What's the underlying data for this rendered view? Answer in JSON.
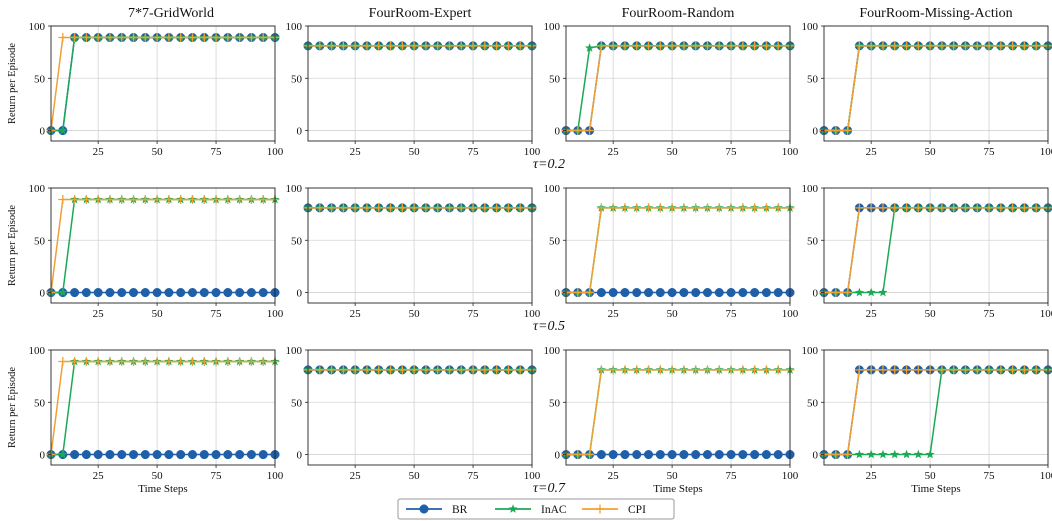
{
  "figure": {
    "column_titles": [
      "7*7-GridWorld",
      "FourRoom-Expert",
      "FourRoom-Random",
      "FourRoom-Missing-Action"
    ],
    "row_labels": [
      "τ=0.2",
      "τ=0.5",
      "τ=0.7"
    ],
    "ylabel": "Return per Episode",
    "xlabel": "Time Steps",
    "legend": [
      "BR",
      "InAC",
      "CPI"
    ]
  },
  "colors": {
    "BR": "#1f5fa8",
    "InAC": "#1aaa55",
    "CPI": "#f0a030",
    "grid": "#d3d3d3"
  },
  "chart_data": {
    "type": "line",
    "layout": "grid 3 rows x 4 columns",
    "xlim": [
      5,
      100
    ],
    "ylim": [
      -10,
      100
    ],
    "xticks": [
      25,
      50,
      75,
      100
    ],
    "yticks": [
      0,
      50,
      100
    ],
    "grid": true,
    "x": [
      5,
      10,
      15,
      20,
      25,
      30,
      35,
      40,
      45,
      50,
      55,
      60,
      65,
      70,
      75,
      80,
      85,
      90,
      95,
      100
    ],
    "legend_position": "bottom-center",
    "panels": [
      {
        "row": 0,
        "col": 0,
        "series": [
          {
            "name": "BR",
            "values": [
              0,
              0,
              89,
              89,
              89,
              89,
              89,
              89,
              89,
              89,
              89,
              89,
              89,
              89,
              89,
              89,
              89,
              89,
              89,
              89
            ]
          },
          {
            "name": "InAC",
            "values": [
              0,
              0,
              89,
              89,
              89,
              89,
              89,
              89,
              89,
              89,
              89,
              89,
              89,
              89,
              89,
              89,
              89,
              89,
              89,
              89
            ]
          },
          {
            "name": "CPI",
            "values": [
              0,
              89,
              89,
              89,
              89,
              89,
              89,
              89,
              89,
              89,
              89,
              89,
              89,
              89,
              89,
              89,
              89,
              89,
              89,
              89
            ]
          }
        ]
      },
      {
        "row": 0,
        "col": 1,
        "series": [
          {
            "name": "BR",
            "values": [
              81,
              81,
              81,
              81,
              81,
              81,
              81,
              81,
              81,
              81,
              81,
              81,
              81,
              81,
              81,
              81,
              81,
              81,
              81,
              81
            ]
          },
          {
            "name": "InAC",
            "values": [
              81,
              81,
              81,
              81,
              81,
              81,
              81,
              81,
              81,
              81,
              81,
              81,
              81,
              81,
              81,
              81,
              81,
              81,
              81,
              81
            ]
          },
          {
            "name": "CPI",
            "values": [
              81,
              81,
              81,
              81,
              81,
              81,
              81,
              81,
              81,
              81,
              81,
              81,
              81,
              81,
              81,
              81,
              81,
              81,
              81,
              81
            ]
          }
        ]
      },
      {
        "row": 0,
        "col": 2,
        "series": [
          {
            "name": "BR",
            "values": [
              0,
              0,
              0,
              81,
              81,
              81,
              81,
              81,
              81,
              81,
              81,
              81,
              81,
              81,
              81,
              81,
              81,
              81,
              81,
              81
            ]
          },
          {
            "name": "InAC",
            "values": [
              0,
              0,
              79,
              81,
              81,
              81,
              81,
              81,
              81,
              81,
              81,
              81,
              81,
              81,
              81,
              81,
              81,
              81,
              81,
              81
            ]
          },
          {
            "name": "CPI",
            "values": [
              0,
              0,
              0,
              81,
              81,
              81,
              81,
              81,
              81,
              81,
              81,
              81,
              81,
              81,
              81,
              81,
              81,
              81,
              81,
              81
            ]
          }
        ]
      },
      {
        "row": 0,
        "col": 3,
        "series": [
          {
            "name": "BR",
            "values": [
              0,
              0,
              0,
              81,
              81,
              81,
              81,
              81,
              81,
              81,
              81,
              81,
              81,
              81,
              81,
              81,
              81,
              81,
              81,
              81
            ]
          },
          {
            "name": "InAC",
            "values": [
              0,
              0,
              0,
              81,
              81,
              81,
              81,
              81,
              81,
              81,
              81,
              81,
              81,
              81,
              81,
              81,
              81,
              81,
              81,
              81
            ]
          },
          {
            "name": "CPI",
            "values": [
              0,
              0,
              0,
              81,
              81,
              81,
              81,
              81,
              81,
              81,
              81,
              81,
              81,
              81,
              81,
              81,
              81,
              81,
              81,
              81
            ]
          }
        ]
      },
      {
        "row": 1,
        "col": 0,
        "series": [
          {
            "name": "BR",
            "values": [
              0,
              0,
              0,
              0,
              0,
              0,
              0,
              0,
              0,
              0,
              0,
              0,
              0,
              0,
              0,
              0,
              0,
              0,
              0,
              0
            ]
          },
          {
            "name": "InAC",
            "values": [
              0,
              0,
              89,
              89,
              89,
              89,
              89,
              89,
              89,
              89,
              89,
              89,
              89,
              89,
              89,
              89,
              89,
              89,
              89,
              89
            ]
          },
          {
            "name": "CPI",
            "values": [
              0,
              89,
              89,
              89,
              89,
              89,
              89,
              89,
              89,
              89,
              89,
              89,
              89,
              89,
              89,
              89,
              89,
              89,
              89,
              89
            ]
          }
        ]
      },
      {
        "row": 1,
        "col": 1,
        "series": [
          {
            "name": "BR",
            "values": [
              81,
              81,
              81,
              81,
              81,
              81,
              81,
              81,
              81,
              81,
              81,
              81,
              81,
              81,
              81,
              81,
              81,
              81,
              81,
              81
            ]
          },
          {
            "name": "InAC",
            "values": [
              81,
              81,
              81,
              81,
              81,
              81,
              81,
              81,
              81,
              81,
              81,
              81,
              81,
              81,
              81,
              81,
              81,
              81,
              81,
              81
            ]
          },
          {
            "name": "CPI",
            "values": [
              81,
              81,
              81,
              81,
              81,
              81,
              81,
              81,
              81,
              81,
              81,
              81,
              81,
              81,
              81,
              81,
              81,
              81,
              81,
              81
            ]
          }
        ]
      },
      {
        "row": 1,
        "col": 2,
        "series": [
          {
            "name": "BR",
            "values": [
              0,
              0,
              0,
              0,
              0,
              0,
              0,
              0,
              0,
              0,
              0,
              0,
              0,
              0,
              0,
              0,
              0,
              0,
              0,
              0
            ]
          },
          {
            "name": "InAC",
            "values": [
              0,
              0,
              0,
              81,
              81,
              81,
              81,
              81,
              81,
              81,
              81,
              81,
              81,
              81,
              81,
              81,
              81,
              81,
              81,
              81
            ]
          },
          {
            "name": "CPI",
            "values": [
              0,
              0,
              0,
              81,
              81,
              81,
              81,
              81,
              81,
              81,
              81,
              81,
              81,
              81,
              81,
              81,
              81,
              81,
              81,
              81
            ]
          }
        ]
      },
      {
        "row": 1,
        "col": 3,
        "series": [
          {
            "name": "BR",
            "values": [
              0,
              0,
              0,
              81,
              81,
              81,
              81,
              81,
              81,
              81,
              81,
              81,
              81,
              81,
              81,
              81,
              81,
              81,
              81,
              81
            ]
          },
          {
            "name": "InAC",
            "values": [
              0,
              0,
              0,
              0,
              0,
              0,
              81,
              81,
              81,
              81,
              81,
              81,
              81,
              81,
              81,
              81,
              81,
              81,
              81,
              81
            ]
          },
          {
            "name": "CPI",
            "values": [
              0,
              0,
              0,
              81,
              81,
              81,
              81,
              81,
              81,
              81,
              81,
              81,
              81,
              81,
              81,
              81,
              81,
              81,
              81,
              81
            ]
          }
        ]
      },
      {
        "row": 2,
        "col": 0,
        "series": [
          {
            "name": "BR",
            "values": [
              0,
              0,
              0,
              0,
              0,
              0,
              0,
              0,
              0,
              0,
              0,
              0,
              0,
              0,
              0,
              0,
              0,
              0,
              0,
              0
            ]
          },
          {
            "name": "InAC",
            "values": [
              0,
              0,
              89,
              89,
              89,
              89,
              89,
              89,
              89,
              89,
              89,
              89,
              89,
              89,
              89,
              89,
              89,
              89,
              89,
              89
            ]
          },
          {
            "name": "CPI",
            "values": [
              0,
              89,
              89,
              89,
              89,
              89,
              89,
              89,
              89,
              89,
              89,
              89,
              89,
              89,
              89,
              89,
              89,
              89,
              89,
              89
            ]
          }
        ]
      },
      {
        "row": 2,
        "col": 1,
        "series": [
          {
            "name": "BR",
            "values": [
              81,
              81,
              81,
              81,
              81,
              81,
              81,
              81,
              81,
              81,
              81,
              81,
              81,
              81,
              81,
              81,
              81,
              81,
              81,
              81
            ]
          },
          {
            "name": "InAC",
            "values": [
              81,
              81,
              81,
              81,
              81,
              81,
              81,
              81,
              81,
              81,
              81,
              81,
              81,
              81,
              81,
              81,
              81,
              81,
              81,
              81
            ]
          },
          {
            "name": "CPI",
            "values": [
              81,
              81,
              81,
              81,
              81,
              81,
              81,
              81,
              81,
              81,
              81,
              81,
              81,
              81,
              81,
              81,
              81,
              81,
              81,
              81
            ]
          }
        ]
      },
      {
        "row": 2,
        "col": 2,
        "series": [
          {
            "name": "BR",
            "values": [
              0,
              0,
              0,
              0,
              0,
              0,
              0,
              0,
              0,
              0,
              0,
              0,
              0,
              0,
              0,
              0,
              0,
              0,
              0,
              0
            ]
          },
          {
            "name": "InAC",
            "values": [
              0,
              0,
              0,
              81,
              81,
              81,
              81,
              81,
              81,
              81,
              81,
              81,
              81,
              81,
              81,
              81,
              81,
              81,
              81,
              81
            ]
          },
          {
            "name": "CPI",
            "values": [
              0,
              0,
              0,
              81,
              81,
              81,
              81,
              81,
              81,
              81,
              81,
              81,
              81,
              81,
              81,
              81,
              81,
              81,
              81,
              81
            ]
          }
        ]
      },
      {
        "row": 2,
        "col": 3,
        "series": [
          {
            "name": "BR",
            "values": [
              0,
              0,
              0,
              81,
              81,
              81,
              81,
              81,
              81,
              81,
              81,
              81,
              81,
              81,
              81,
              81,
              81,
              81,
              81,
              81
            ]
          },
          {
            "name": "InAC",
            "values": [
              0,
              0,
              0,
              0,
              0,
              0,
              0,
              0,
              0,
              0,
              81,
              81,
              81,
              81,
              81,
              81,
              81,
              81,
              81,
              81
            ]
          },
          {
            "name": "CPI",
            "values": [
              0,
              0,
              0,
              81,
              81,
              81,
              81,
              81,
              81,
              81,
              81,
              81,
              81,
              81,
              81,
              81,
              81,
              81,
              81,
              81
            ]
          }
        ]
      }
    ]
  }
}
